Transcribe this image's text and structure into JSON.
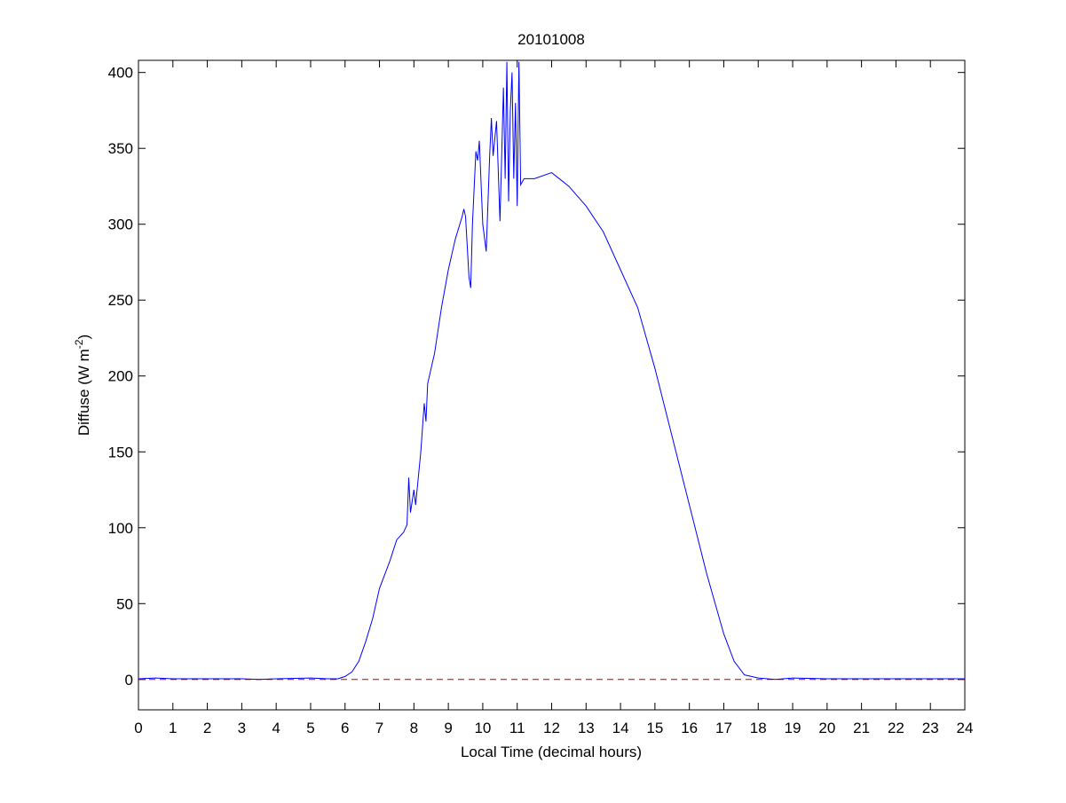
{
  "chart_data": {
    "type": "line",
    "title": "20101008",
    "xlabel": "Local Time (decimal hours)",
    "ylabel": {
      "text": "Diffuse (W m",
      "superscript": "-2",
      "suffix": ")"
    },
    "x": [
      0,
      0.5,
      1,
      2,
      3,
      3.5,
      4,
      5,
      5.5,
      5.8,
      6,
      6.2,
      6.4,
      6.6,
      6.8,
      7,
      7.2,
      7.3,
      7.4,
      7.5,
      7.7,
      7.8,
      7.85,
      7.9,
      8,
      8.05,
      8.2,
      8.3,
      8.35,
      8.4,
      8.6,
      8.8,
      9,
      9.2,
      9.4,
      9.45,
      9.5,
      9.6,
      9.65,
      9.7,
      9.8,
      9.85,
      9.9,
      10,
      10.1,
      10.2,
      10.25,
      10.3,
      10.4,
      10.5,
      10.6,
      10.65,
      10.7,
      10.75,
      10.8,
      10.85,
      10.9,
      10.95,
      11,
      11.05,
      11.1,
      11.2,
      11.5,
      12,
      12.5,
      13,
      13.5,
      14,
      14.5,
      15,
      15.5,
      16,
      16.5,
      17,
      17.3,
      17.6,
      18,
      18.5,
      19,
      20,
      21,
      22,
      23,
      24
    ],
    "series": [
      {
        "name": "Diffuse",
        "color": "#0000ff",
        "values": [
          0.5,
          1,
          0.5,
          0.5,
          0.5,
          0,
          0.5,
          1,
          0.5,
          0.5,
          2,
          5,
          12,
          25,
          40,
          60,
          72,
          78,
          85,
          92,
          97,
          102,
          133,
          110,
          125,
          115,
          150,
          182,
          170,
          195,
          215,
          245,
          270,
          290,
          305,
          310,
          305,
          265,
          258,
          300,
          348,
          342,
          355,
          300,
          282,
          345,
          370,
          345,
          368,
          302,
          390,
          330,
          407,
          315,
          375,
          400,
          330,
          380,
          312,
          407,
          326,
          330,
          330,
          334,
          325,
          312,
          295,
          270,
          245,
          205,
          160,
          115,
          70,
          30,
          12,
          3,
          1,
          0,
          1,
          0.5,
          0.5,
          0.5,
          0.5,
          0.5
        ]
      }
    ],
    "xlim": [
      0,
      24
    ],
    "ylim": [
      -20,
      408
    ],
    "xticks": [
      0,
      1,
      2,
      3,
      4,
      5,
      6,
      7,
      8,
      9,
      10,
      11,
      12,
      13,
      14,
      15,
      16,
      17,
      18,
      19,
      20,
      21,
      22,
      23,
      24
    ],
    "yticks": [
      0,
      50,
      100,
      150,
      200,
      250,
      300,
      350,
      400
    ],
    "reference_line": {
      "y": 0,
      "color": "#c00000",
      "style": "dashed"
    }
  }
}
